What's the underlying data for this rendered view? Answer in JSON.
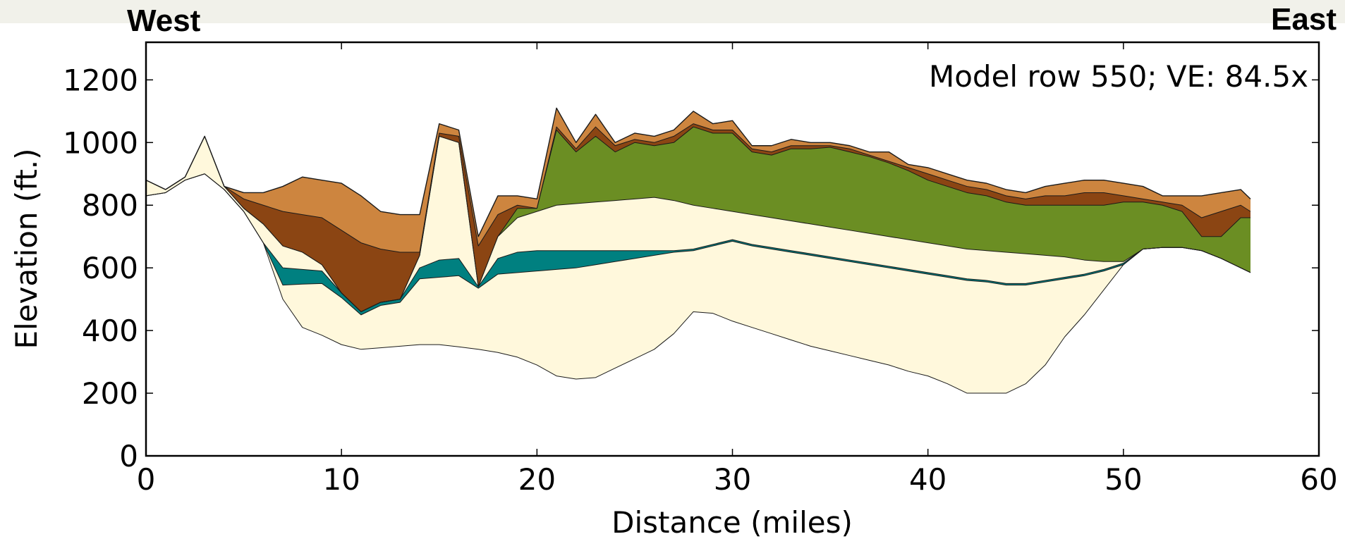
{
  "chart_data": {
    "type": "cross-section",
    "title_left": "West",
    "title_right": "East",
    "annotation": "Model row 550; VE: 84.5x",
    "xlabel": "Distance (miles)",
    "ylabel": "Elevation (ft.)",
    "xlim": [
      0,
      60
    ],
    "ylim": [
      0,
      1320
    ],
    "xticks": [
      0,
      10,
      20,
      30,
      40,
      50,
      60
    ],
    "yticks": [
      0,
      200,
      400,
      600,
      800,
      1000,
      1200
    ],
    "x": [
      0,
      1,
      2,
      3,
      4,
      5,
      6,
      7,
      8,
      9,
      10,
      11,
      12,
      13,
      14,
      15,
      16,
      17,
      18,
      19,
      20,
      21,
      22,
      23,
      24,
      25,
      26,
      27,
      28,
      29,
      30,
      31,
      32,
      33,
      34,
      35,
      36,
      37,
      38,
      39,
      40,
      41,
      42,
      43,
      44,
      45,
      46,
      47,
      48,
      49,
      50,
      51,
      52,
      53,
      54,
      55,
      56,
      56.5
    ],
    "series": [
      {
        "color": "#cd853f",
        "values": [
          880,
          850,
          890,
          1020,
          860,
          840,
          840,
          860,
          890,
          880,
          870,
          830,
          780,
          770,
          770,
          1060,
          1040,
          700,
          830,
          830,
          820,
          1110,
          1000,
          1090,
          1000,
          1030,
          1020,
          1040,
          1100,
          1060,
          1070,
          990,
          990,
          1010,
          1000,
          1000,
          990,
          970,
          970,
          930,
          920,
          900,
          880,
          870,
          850,
          840,
          860,
          870,
          880,
          880,
          870,
          860,
          830,
          830,
          830,
          840,
          850,
          820
        ]
      },
      {
        "color": "#8b4513",
        "values": [
          880,
          850,
          890,
          1020,
          860,
          820,
          800,
          780,
          770,
          760,
          720,
          680,
          660,
          650,
          650,
          1030,
          1020,
          670,
          770,
          800,
          790,
          1050,
          980,
          1050,
          990,
          1010,
          1000,
          1020,
          1060,
          1040,
          1040,
          980,
          970,
          990,
          990,
          990,
          980,
          960,
          940,
          920,
          900,
          880,
          860,
          850,
          830,
          820,
          830,
          830,
          840,
          840,
          830,
          820,
          810,
          800,
          760,
          780,
          800,
          780
        ]
      },
      {
        "color": "#6b8e23",
        "values": [
          880,
          850,
          890,
          1020,
          860,
          790,
          740,
          670,
          650,
          610,
          520,
          460,
          490,
          500,
          640,
          1020,
          1000,
          540,
          700,
          790,
          790,
          1040,
          970,
          1020,
          970,
          1000,
          990,
          1000,
          1050,
          1030,
          1030,
          970,
          960,
          980,
          980,
          985,
          970,
          955,
          935,
          910,
          880,
          860,
          840,
          830,
          810,
          800,
          800,
          800,
          800,
          800,
          810,
          810,
          800,
          780,
          700,
          700,
          760,
          760
        ]
      },
      {
        "color": "#fff8dc",
        "values": [
          880,
          850,
          890,
          1020,
          860,
          790,
          740,
          670,
          650,
          610,
          520,
          460,
          490,
          500,
          640,
          1020,
          1000,
          540,
          700,
          760,
          780,
          800,
          805,
          810,
          815,
          820,
          825,
          815,
          800,
          790,
          780,
          770,
          760,
          750,
          740,
          730,
          720,
          710,
          700,
          690,
          680,
          670,
          660,
          655,
          650,
          645,
          640,
          635,
          625,
          620,
          620,
          660,
          665,
          665,
          655,
          630,
          600,
          585
        ]
      },
      {
        "color": "#008080",
        "values": [
          830,
          840,
          880,
          900,
          850,
          780,
          680,
          600,
          595,
          590,
          520,
          460,
          490,
          500,
          600,
          625,
          630,
          540,
          630,
          650,
          655,
          655,
          655,
          655,
          655,
          655,
          655,
          655,
          660,
          675,
          690,
          675,
          665,
          655,
          645,
          635,
          625,
          615,
          605,
          595,
          585,
          575,
          565,
          560,
          550,
          550,
          560,
          570,
          580,
          595,
          615,
          660,
          665,
          665,
          655,
          630,
          600,
          585
        ]
      },
      {
        "color": "#fff8dc",
        "values": [
          830,
          840,
          880,
          900,
          850,
          780,
          680,
          545,
          548,
          550,
          505,
          450,
          480,
          490,
          565,
          570,
          575,
          535,
          580,
          585,
          590,
          595,
          600,
          610,
          620,
          630,
          640,
          650,
          655,
          670,
          685,
          670,
          660,
          650,
          640,
          630,
          620,
          610,
          600,
          590,
          580,
          570,
          560,
          555,
          545,
          545,
          555,
          565,
          575,
          590,
          610,
          660,
          665,
          665,
          655,
          630,
          600,
          585
        ]
      },
      {
        "values": [
          830,
          840,
          880,
          900,
          850,
          780,
          680,
          500,
          410,
          385,
          355,
          340,
          345,
          350,
          355,
          355,
          348,
          340,
          330,
          315,
          290,
          255,
          245,
          250,
          280,
          310,
          340,
          390,
          460,
          455,
          430,
          410,
          390,
          370,
          350,
          335,
          320,
          305,
          290,
          270,
          255,
          230,
          200,
          200,
          200,
          230,
          290,
          380,
          450,
          530,
          610,
          660,
          665,
          665,
          655,
          630,
          600,
          585
        ]
      }
    ]
  }
}
